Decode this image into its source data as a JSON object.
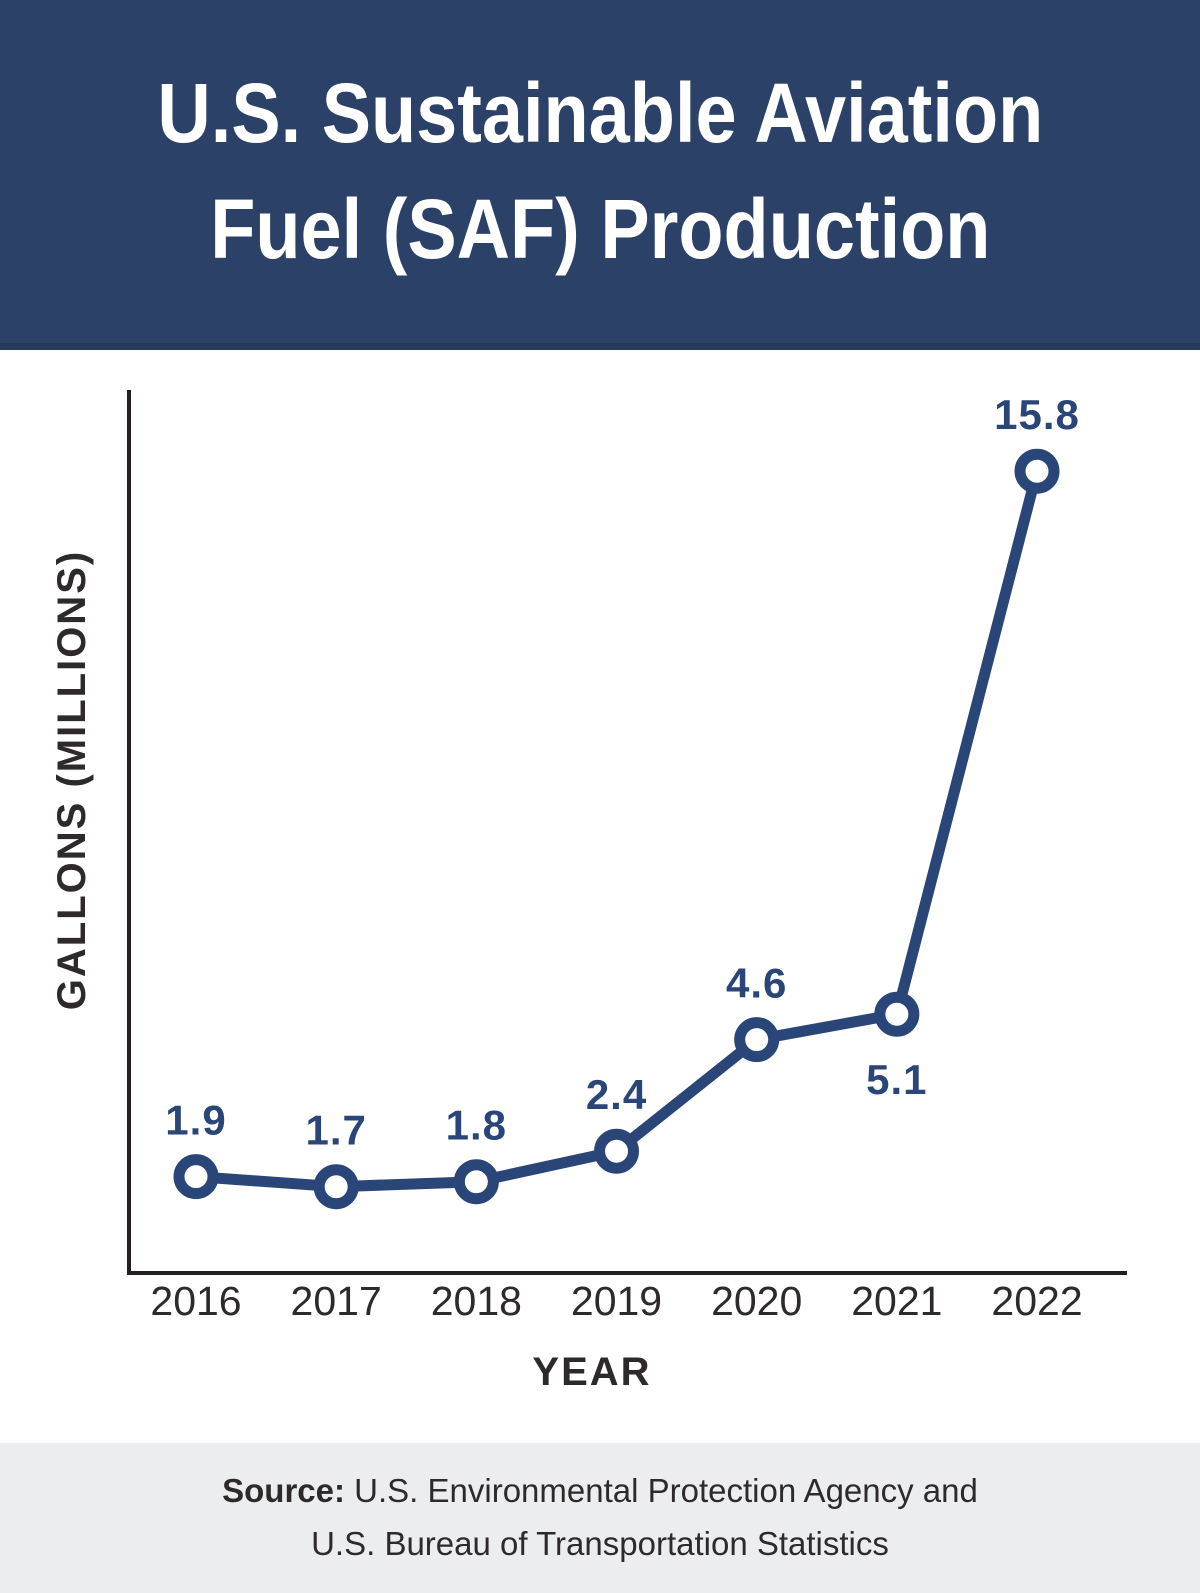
{
  "header": {
    "title_line1": "U.S. Sustainable Aviation",
    "title_line2": "Fuel (SAF) Production"
  },
  "chart_data": {
    "type": "line",
    "title": "U.S. Sustainable Aviation Fuel (SAF) Production",
    "x": [
      "2016",
      "2017",
      "2018",
      "2019",
      "2020",
      "2021",
      "2022"
    ],
    "values": [
      1.9,
      1.7,
      1.8,
      2.4,
      4.6,
      5.1,
      15.8
    ],
    "labels": [
      "1.9",
      "1.7",
      "1.8",
      "2.4",
      "4.6",
      "5.1",
      "15.8"
    ],
    "label_position": [
      "above",
      "above",
      "above",
      "above",
      "above",
      "below",
      "above"
    ],
    "xlabel": "YEAR",
    "ylabel": "GALLONS (MILLIONS)",
    "ylim": [
      0,
      17.4
    ],
    "grid": false,
    "legend": false,
    "marker": "open-circle"
  },
  "footer": {
    "source_label": "Source:",
    "source_line1_rest": "U.S. Environmental Protection Agency and",
    "source_line2": "U.S. Bureau of Transportation Statistics"
  },
  "colors": {
    "header_bg": "#2b4168",
    "accent": "#2a4577",
    "axis": "#231f20",
    "text_dark": "#2e2a2b",
    "footer_bg": "#ecedee",
    "point_fill": "#ffffff",
    "title_text": "#ffffff"
  }
}
